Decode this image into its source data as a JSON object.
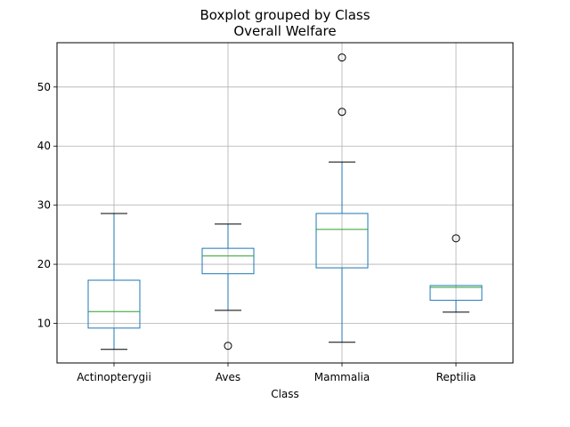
{
  "chart_data": {
    "type": "boxplot",
    "title": "Boxplot grouped by Class",
    "subtitle": "Overall Welfare",
    "xlabel": "Class",
    "ylabel": "",
    "ylim": [
      3.3,
      57.5
    ],
    "yticks": [
      10,
      20,
      30,
      40,
      50
    ],
    "grid": true,
    "categories": [
      "Actinopterygii",
      "Aves",
      "Mammalia",
      "Reptilia"
    ],
    "boxes": [
      {
        "category": "Actinopterygii",
        "whisker_low": 5.6,
        "q1": 9.2,
        "median": 12.0,
        "q3": 17.3,
        "whisker_high": 28.6,
        "outliers": []
      },
      {
        "category": "Aves",
        "whisker_low": 12.2,
        "q1": 18.4,
        "median": 21.4,
        "q3": 22.7,
        "whisker_high": 26.8,
        "outliers": [
          6.2
        ]
      },
      {
        "category": "Mammalia",
        "whisker_low": 6.8,
        "q1": 19.4,
        "median": 25.9,
        "q3": 28.6,
        "whisker_high": 37.3,
        "outliers": [
          45.8,
          55.0
        ]
      },
      {
        "category": "Reptilia",
        "whisker_low": 11.9,
        "q1": 13.9,
        "median": 16.1,
        "q3": 16.4,
        "whisker_high": 16.4,
        "outliers": [
          24.4
        ]
      }
    ],
    "colors": {
      "box": "#1f77b4",
      "median": "#2ca02c",
      "whisker_cap": "#000000",
      "grid": "#b0b0b0",
      "outlier_edge": "#000000"
    }
  }
}
